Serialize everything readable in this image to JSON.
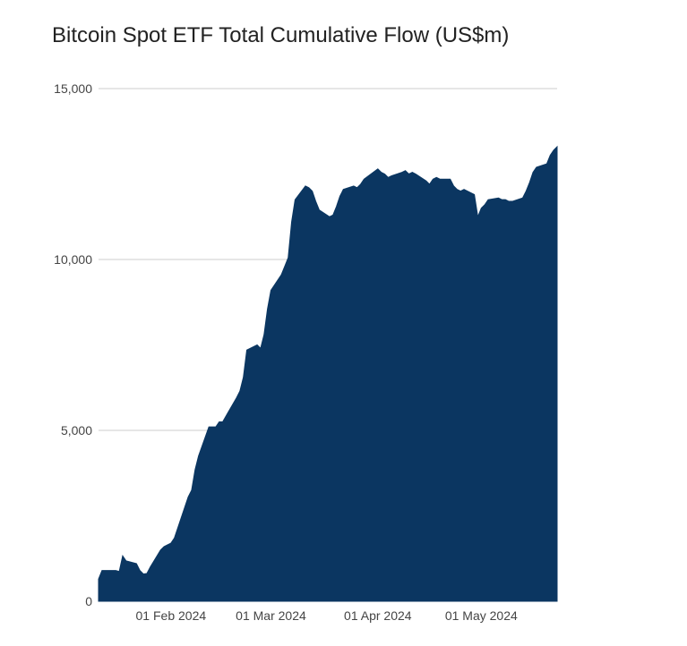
{
  "chart_data": {
    "type": "area",
    "title": "Bitcoin Spot ETF Total Cumulative Flow (US$m)",
    "xlabel": "",
    "ylabel": "",
    "ylim": [
      0,
      15000
    ],
    "yticks": [
      0,
      5000,
      10000,
      15000
    ],
    "ytick_labels": [
      "0",
      "5,000",
      "10,000",
      "15,000"
    ],
    "xlim": [
      "2024-01-11",
      "2024-05-23"
    ],
    "xticks": [
      "2024-02-01",
      "2024-03-01",
      "2024-04-01",
      "2024-05-01"
    ],
    "xtick_labels": [
      "01 Feb 2024",
      "01 Mar 2024",
      "01 Apr 2024",
      "01 May 2024"
    ],
    "grid": "horizontal",
    "legend": "none",
    "series_color": "#0b3661",
    "series": [
      {
        "x": [
          "2024-01-11",
          "2024-01-12",
          "2024-01-16",
          "2024-01-17",
          "2024-01-18",
          "2024-01-19",
          "2024-01-22",
          "2024-01-23",
          "2024-01-24",
          "2024-01-25",
          "2024-01-26",
          "2024-01-29",
          "2024-01-30",
          "2024-01-31",
          "2024-02-01",
          "2024-02-02",
          "2024-02-05",
          "2024-02-06",
          "2024-02-07",
          "2024-02-08",
          "2024-02-09",
          "2024-02-12",
          "2024-02-13",
          "2024-02-14",
          "2024-02-15",
          "2024-02-16",
          "2024-02-20",
          "2024-02-21",
          "2024-02-22",
          "2024-02-23",
          "2024-02-26",
          "2024-02-27",
          "2024-02-28",
          "2024-02-29",
          "2024-03-01",
          "2024-03-04",
          "2024-03-05",
          "2024-03-06",
          "2024-03-07",
          "2024-03-08",
          "2024-03-11",
          "2024-03-12",
          "2024-03-13",
          "2024-03-14",
          "2024-03-15",
          "2024-03-18",
          "2024-03-19",
          "2024-03-20",
          "2024-03-21",
          "2024-03-22",
          "2024-03-25",
          "2024-03-26",
          "2024-03-27",
          "2024-03-28",
          "2024-04-01",
          "2024-04-02",
          "2024-04-03",
          "2024-04-04",
          "2024-04-05",
          "2024-04-08",
          "2024-04-09",
          "2024-04-10",
          "2024-04-11",
          "2024-04-12",
          "2024-04-15",
          "2024-04-16",
          "2024-04-17",
          "2024-04-18",
          "2024-04-19",
          "2024-04-22",
          "2024-04-23",
          "2024-04-24",
          "2024-04-25",
          "2024-04-26",
          "2024-04-29",
          "2024-04-30",
          "2024-05-01",
          "2024-05-02",
          "2024-05-03",
          "2024-05-06",
          "2024-05-07",
          "2024-05-08",
          "2024-05-09",
          "2024-05-10",
          "2024-05-13",
          "2024-05-14",
          "2024-05-15",
          "2024-05-16",
          "2024-05-17",
          "2024-05-20",
          "2024-05-21",
          "2024-05-22",
          "2024-05-23"
        ],
        "values": [
          650,
          900,
          900,
          870,
          1330,
          1180,
          1100,
          900,
          800,
          810,
          1000,
          1500,
          1600,
          1650,
          1700,
          1850,
          2750,
          3050,
          3250,
          3850,
          4250,
          5100,
          5100,
          5100,
          5250,
          5250,
          5950,
          6150,
          6550,
          7350,
          7500,
          7400,
          7800,
          8550,
          9100,
          9550,
          9800,
          10050,
          11100,
          11750,
          12150,
          12100,
          12000,
          11700,
          11450,
          11250,
          11300,
          11550,
          11850,
          12050,
          12150,
          12100,
          12200,
          12350,
          12650,
          12550,
          12500,
          12400,
          12450,
          12550,
          12600,
          12500,
          12550,
          12500,
          12300,
          12200,
          12350,
          12400,
          12350,
          12350,
          12150,
          12050,
          12000,
          12050,
          11900,
          11250,
          11500,
          11600,
          11750,
          11800,
          11750,
          11750,
          11700,
          11700,
          11800,
          12000,
          12250,
          12550,
          12700,
          12800,
          13050,
          13200,
          13300
        ]
      }
    ]
  }
}
